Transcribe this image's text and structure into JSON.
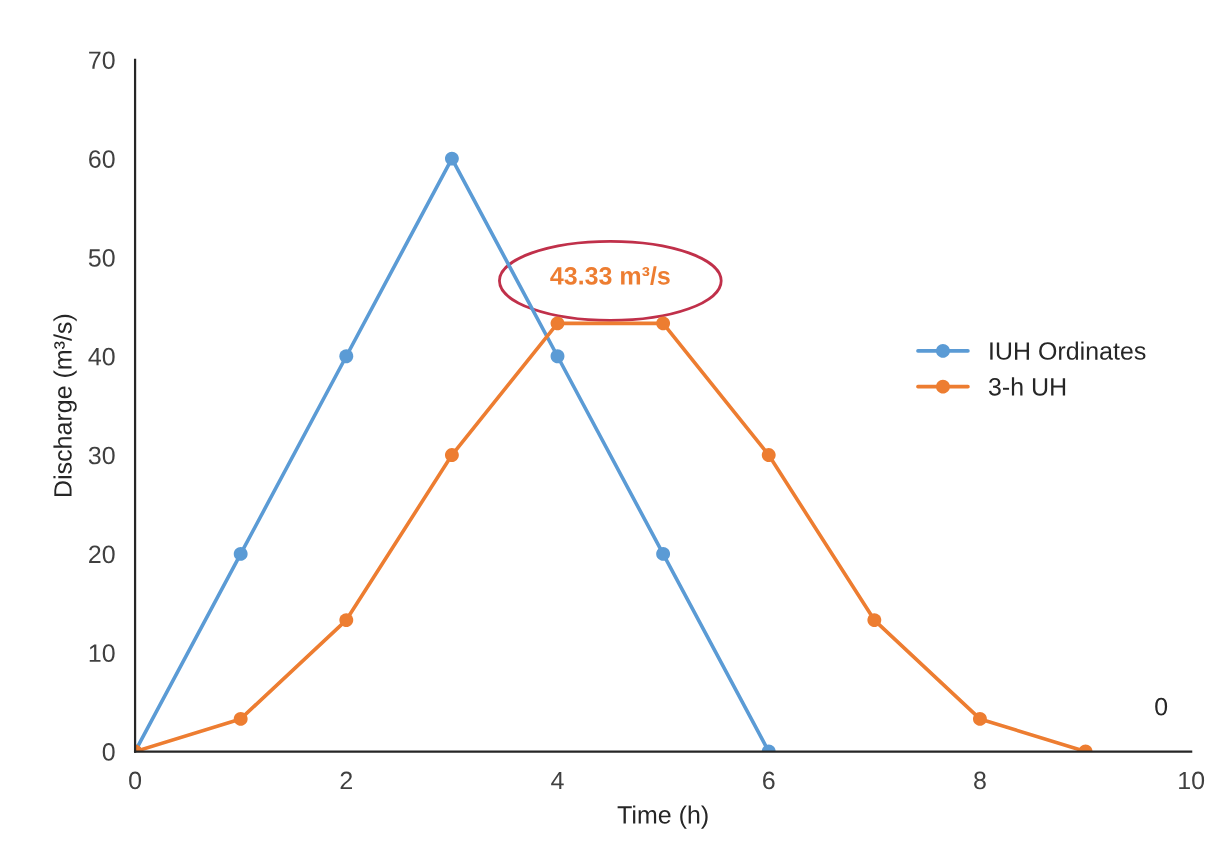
{
  "chart_data": {
    "type": "line",
    "xlabel": "Time (h)",
    "ylabel": "Discharge (m³/s)",
    "series": [
      {
        "name": "IUH Ordinates",
        "color": "#5b9bd5",
        "x": [
          0,
          1,
          2,
          3,
          4,
          5,
          6
        ],
        "values": [
          0,
          20,
          40,
          60,
          40,
          20,
          0
        ]
      },
      {
        "name": "3-h UH",
        "color": "#ed7d31",
        "x": [
          0,
          1,
          2,
          3,
          4,
          5,
          6,
          7,
          8,
          9
        ],
        "values": [
          0,
          3.3,
          13.3,
          30,
          43.33,
          43.33,
          30,
          13.3,
          3.3,
          0
        ]
      }
    ],
    "xlim": [
      0,
      10
    ],
    "xticks": [
      0,
      2,
      4,
      6,
      8,
      10
    ],
    "ylim": [
      0,
      70
    ],
    "yticks": [
      0,
      10,
      20,
      30,
      40,
      50,
      60,
      70
    ],
    "grid": false,
    "legend": "right",
    "marker": "circle",
    "line_style": "solid",
    "annotations": [
      {
        "text": "43.33 m³/s",
        "x": 4.5,
        "y": 43.33
      },
      "0"
    ]
  }
}
